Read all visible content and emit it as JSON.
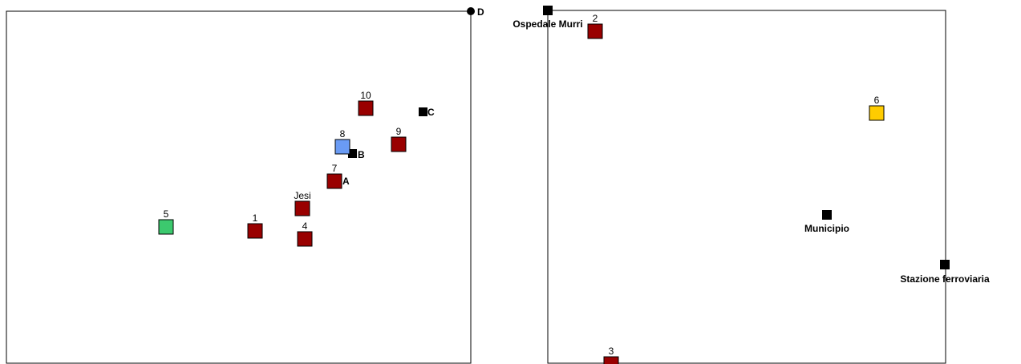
{
  "colors": {
    "default_marker": "#990000",
    "blue_marker": "#6a9bf4",
    "green_marker": "#3cc96e",
    "yellow_marker": "#ffcc00",
    "reference": "#000000",
    "frame": "#000000"
  },
  "left_map": {
    "markers": [
      {
        "label": "1",
        "color": "default_marker"
      },
      {
        "label": "4",
        "color": "default_marker"
      },
      {
        "label": "5",
        "color": "green_marker"
      },
      {
        "label": "7",
        "color": "default_marker"
      },
      {
        "label": "8",
        "color": "blue_marker"
      },
      {
        "label": "9",
        "color": "default_marker"
      },
      {
        "label": "10",
        "color": "default_marker"
      },
      {
        "label": "Jesi",
        "color": "default_marker"
      }
    ],
    "reference_points": [
      {
        "label": "A",
        "shape": "circle"
      },
      {
        "label": "B",
        "shape": "square"
      },
      {
        "label": "C",
        "shape": "square"
      },
      {
        "label": "D",
        "shape": "circle"
      }
    ]
  },
  "right_map": {
    "markers": [
      {
        "label": "2",
        "color": "default_marker"
      },
      {
        "label": "3",
        "color": "default_marker"
      },
      {
        "label": "6",
        "color": "yellow_marker"
      }
    ],
    "reference_points": [
      {
        "label": "Ospedale Murri",
        "shape": "square"
      },
      {
        "label": "Municipio",
        "shape": "square"
      },
      {
        "label": "Stazione ferroviaria",
        "shape": "square"
      }
    ]
  }
}
